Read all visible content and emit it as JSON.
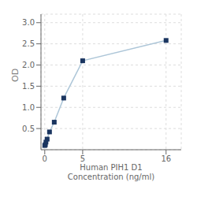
{
  "chart_data": {
    "type": "line",
    "xlabel": "Human PIH1 D1\nConcentration (ng/ml)",
    "ylabel": "OD",
    "x": [
      0.0,
      0.078,
      0.156,
      0.313,
      0.625,
      1.25,
      2.5,
      5.0,
      16.0
    ],
    "values": [
      0.1,
      0.12,
      0.18,
      0.25,
      0.42,
      0.65,
      1.22,
      2.1,
      2.58
    ],
    "color": "#adc6d8",
    "colors": [
      "#1a3560",
      "#1a3560",
      "#1a3560",
      "#1a3560",
      "#1a3560",
      "#1a3560",
      "#1a3560",
      "#1a3560",
      "#1a3560"
    ],
    "marker": "square",
    "xlim": [
      -0.5,
      18.0
    ],
    "ylim": [
      0.0,
      3.2
    ],
    "xticks": [
      0,
      5,
      16
    ],
    "yticks": [
      0.5,
      {
        "value": 1,
        "label": "1.0"
      },
      1.5,
      {
        "value": 2,
        "label": "2.0"
      },
      2.5,
      {
        "value": 3,
        "label": "3.0"
      }
    ],
    "grid": true
  }
}
